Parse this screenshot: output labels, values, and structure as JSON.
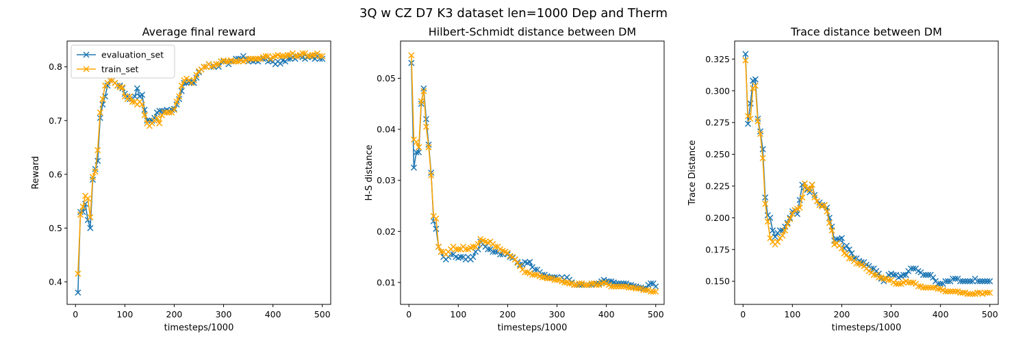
{
  "figure": {
    "suptitle": "3Q w CZ D7 K3 dataset len=1000 Dep and Therm"
  },
  "colors": {
    "evaluation_set": "#1f77b4",
    "train_set": "#ffa500"
  },
  "chart_data": [
    {
      "type": "line",
      "title": "Average final reward",
      "xlabel": "timesteps/1000",
      "ylabel": "Reward",
      "xlim": [
        -17,
        517
      ],
      "ylim": [
        0.358,
        0.848
      ],
      "xticks": [
        0,
        100,
        200,
        300,
        400,
        500
      ],
      "yticks": [
        0.4,
        0.5,
        0.6,
        0.7,
        0.8
      ],
      "ytick_labels": [
        "0.4",
        "0.5",
        "0.6",
        "0.7",
        "0.8"
      ],
      "legend": {
        "placement": "upper-left",
        "entries": [
          "evaluation_set",
          "train_set"
        ]
      },
      "x": [
        5,
        10,
        15,
        20,
        25,
        30,
        35,
        40,
        45,
        50,
        55,
        60,
        65,
        70,
        75,
        80,
        85,
        90,
        95,
        100,
        105,
        110,
        115,
        120,
        125,
        130,
        135,
        140,
        145,
        150,
        155,
        160,
        165,
        170,
        175,
        180,
        185,
        190,
        195,
        200,
        205,
        210,
        215,
        220,
        225,
        230,
        235,
        240,
        245,
        250,
        255,
        260,
        265,
        270,
        275,
        280,
        285,
        290,
        295,
        300,
        305,
        310,
        315,
        320,
        325,
        330,
        335,
        340,
        345,
        350,
        355,
        360,
        365,
        370,
        375,
        380,
        385,
        390,
        395,
        400,
        405,
        410,
        415,
        420,
        425,
        430,
        435,
        440,
        445,
        450,
        455,
        460,
        465,
        470,
        475,
        480,
        485,
        490,
        495,
        500
      ],
      "series": [
        {
          "name": "evaluation_set",
          "values": [
            0.38,
            0.53,
            0.53,
            0.545,
            0.515,
            0.5,
            0.59,
            0.61,
            0.625,
            0.705,
            0.73,
            0.745,
            0.765,
            0.775,
            0.775,
            0.77,
            0.765,
            0.765,
            0.76,
            0.75,
            0.745,
            0.74,
            0.74,
            0.745,
            0.76,
            0.745,
            0.748,
            0.72,
            0.7,
            0.7,
            0.7,
            0.705,
            0.715,
            0.718,
            0.718,
            0.718,
            0.72,
            0.718,
            0.72,
            0.722,
            0.73,
            0.74,
            0.755,
            0.77,
            0.77,
            0.772,
            0.772,
            0.77,
            0.78,
            0.79,
            0.795,
            0.8,
            0.8,
            0.805,
            0.8,
            0.8,
            0.805,
            0.8,
            0.81,
            0.81,
            0.81,
            0.805,
            0.81,
            0.81,
            0.815,
            0.815,
            0.815,
            0.82,
            0.815,
            0.81,
            0.812,
            0.81,
            0.812,
            0.81,
            0.815,
            0.815,
            0.815,
            0.81,
            0.812,
            0.81,
            0.805,
            0.81,
            0.806,
            0.812,
            0.81,
            0.815,
            0.815,
            0.818,
            0.815,
            0.82,
            0.82,
            0.818,
            0.815,
            0.818,
            0.82,
            0.818,
            0.815,
            0.82,
            0.815,
            0.815
          ]
        },
        {
          "name": "train_set",
          "values": [
            0.415,
            0.525,
            0.54,
            0.56,
            0.555,
            0.52,
            0.595,
            0.605,
            0.645,
            0.715,
            0.74,
            0.765,
            0.77,
            0.775,
            0.775,
            0.77,
            0.765,
            0.762,
            0.762,
            0.745,
            0.74,
            0.745,
            0.735,
            0.735,
            0.73,
            0.735,
            0.73,
            0.71,
            0.695,
            0.69,
            0.695,
            0.7,
            0.705,
            0.695,
            0.71,
            0.715,
            0.715,
            0.715,
            0.715,
            0.72,
            0.735,
            0.745,
            0.765,
            0.775,
            0.778,
            0.775,
            0.77,
            0.775,
            0.785,
            0.792,
            0.795,
            0.8,
            0.8,
            0.805,
            0.8,
            0.802,
            0.805,
            0.805,
            0.81,
            0.812,
            0.81,
            0.81,
            0.812,
            0.81,
            0.81,
            0.81,
            0.812,
            0.81,
            0.812,
            0.815,
            0.815,
            0.815,
            0.815,
            0.815,
            0.815,
            0.818,
            0.82,
            0.82,
            0.815,
            0.818,
            0.82,
            0.822,
            0.82,
            0.82,
            0.82,
            0.822,
            0.822,
            0.825,
            0.82,
            0.82,
            0.822,
            0.825,
            0.825,
            0.82,
            0.82,
            0.822,
            0.822,
            0.825,
            0.82,
            0.82
          ]
        }
      ]
    },
    {
      "type": "line",
      "title": "Hilbert-Schmidt distance between DM",
      "xlabel": "timesteps/1000",
      "ylabel": "H-S distance",
      "xlim": [
        -17,
        517
      ],
      "ylim": [
        0.0057,
        0.0573
      ],
      "xticks": [
        0,
        100,
        200,
        300,
        400,
        500
      ],
      "yticks": [
        0.01,
        0.02,
        0.03,
        0.04,
        0.05
      ],
      "ytick_labels": [
        "0.01",
        "0.02",
        "0.03",
        "0.04",
        "0.05"
      ],
      "x": [
        5,
        10,
        15,
        20,
        25,
        30,
        35,
        40,
        45,
        50,
        55,
        60,
        65,
        70,
        75,
        80,
        85,
        90,
        95,
        100,
        105,
        110,
        115,
        120,
        125,
        130,
        135,
        140,
        145,
        150,
        155,
        160,
        165,
        170,
        175,
        180,
        185,
        190,
        195,
        200,
        205,
        210,
        215,
        220,
        225,
        230,
        235,
        240,
        245,
        250,
        255,
        260,
        265,
        270,
        275,
        280,
        285,
        290,
        295,
        300,
        305,
        310,
        315,
        320,
        325,
        330,
        335,
        340,
        345,
        350,
        355,
        360,
        365,
        370,
        375,
        380,
        385,
        390,
        395,
        400,
        405,
        410,
        415,
        420,
        425,
        430,
        435,
        440,
        445,
        450,
        455,
        460,
        465,
        470,
        475,
        480,
        485,
        490,
        495,
        500
      ],
      "series": [
        {
          "name": "evaluation_set",
          "values": [
            0.053,
            0.0325,
            0.0355,
            0.0355,
            0.045,
            0.048,
            0.042,
            0.037,
            0.0315,
            0.022,
            0.0205,
            0.017,
            0.016,
            0.015,
            0.0145,
            0.015,
            0.0155,
            0.0155,
            0.015,
            0.0148,
            0.015,
            0.015,
            0.0145,
            0.015,
            0.0145,
            0.015,
            0.016,
            0.0165,
            0.018,
            0.0175,
            0.017,
            0.0165,
            0.0165,
            0.016,
            0.016,
            0.016,
            0.0155,
            0.0155,
            0.016,
            0.0155,
            0.015,
            0.0148,
            0.0145,
            0.014,
            0.0135,
            0.0135,
            0.014,
            0.0138,
            0.014,
            0.013,
            0.0125,
            0.0125,
            0.012,
            0.0115,
            0.0115,
            0.0112,
            0.011,
            0.011,
            0.011,
            0.011,
            0.0105,
            0.011,
            0.0105,
            0.011,
            0.0105,
            0.01,
            0.0095,
            0.0095,
            0.0095,
            0.0095,
            0.0095,
            0.0095,
            0.0095,
            0.0095,
            0.0098,
            0.0098,
            0.0098,
            0.0102,
            0.0105,
            0.0102,
            0.0102,
            0.0102,
            0.01,
            0.0098,
            0.0098,
            0.0098,
            0.0098,
            0.0098,
            0.0095,
            0.0095,
            0.0093,
            0.0092,
            0.009,
            0.009,
            0.0088,
            0.0088,
            0.0095,
            0.0098,
            0.0098,
            0.0092
          ]
        },
        {
          "name": "train_set",
          "values": [
            0.0545,
            0.038,
            0.0375,
            0.0365,
            0.0455,
            0.0475,
            0.0405,
            0.0365,
            0.031,
            0.023,
            0.0225,
            0.017,
            0.016,
            0.016,
            0.0155,
            0.016,
            0.0165,
            0.017,
            0.0165,
            0.0165,
            0.0165,
            0.017,
            0.0165,
            0.0165,
            0.0168,
            0.017,
            0.017,
            0.0175,
            0.0185,
            0.0182,
            0.018,
            0.0178,
            0.018,
            0.0175,
            0.017,
            0.017,
            0.0165,
            0.0162,
            0.016,
            0.0158,
            0.0152,
            0.015,
            0.0145,
            0.0138,
            0.0132,
            0.0125,
            0.012,
            0.012,
            0.0118,
            0.0115,
            0.0115,
            0.0115,
            0.0112,
            0.011,
            0.011,
            0.0108,
            0.0108,
            0.0108,
            0.0105,
            0.0105,
            0.0105,
            0.0102,
            0.01,
            0.01,
            0.0098,
            0.0098,
            0.0095,
            0.0095,
            0.0098,
            0.0098,
            0.0095,
            0.0095,
            0.0095,
            0.0098,
            0.0098,
            0.0095,
            0.0095,
            0.0098,
            0.01,
            0.0098,
            0.0095,
            0.0092,
            0.0092,
            0.0092,
            0.0092,
            0.0092,
            0.0092,
            0.0092,
            0.009,
            0.009,
            0.009,
            0.0088,
            0.0088,
            0.0088,
            0.0085,
            0.0085,
            0.0085,
            0.0082,
            0.0082,
            0.0082
          ]
        }
      ]
    },
    {
      "type": "line",
      "title": "Trace distance between DM",
      "xlabel": "timesteps/1000",
      "ylabel": "Trace Distance",
      "xlim": [
        -17,
        517
      ],
      "ylim": [
        0.1318,
        0.3392
      ],
      "xticks": [
        0,
        100,
        200,
        300,
        400,
        500
      ],
      "yticks": [
        0.15,
        0.175,
        0.2,
        0.225,
        0.25,
        0.275,
        0.3,
        0.325
      ],
      "ytick_labels": [
        "0.150",
        "0.175",
        "0.200",
        "0.225",
        "0.250",
        "0.275",
        "0.300",
        "0.325"
      ],
      "x": [
        5,
        10,
        15,
        20,
        25,
        30,
        35,
        40,
        45,
        50,
        55,
        60,
        65,
        70,
        75,
        80,
        85,
        90,
        95,
        100,
        105,
        110,
        115,
        120,
        125,
        130,
        135,
        140,
        145,
        150,
        155,
        160,
        165,
        170,
        175,
        180,
        185,
        190,
        195,
        200,
        205,
        210,
        215,
        220,
        225,
        230,
        235,
        240,
        245,
        250,
        255,
        260,
        265,
        270,
        275,
        280,
        285,
        290,
        295,
        300,
        305,
        310,
        315,
        320,
        325,
        330,
        335,
        340,
        345,
        350,
        355,
        360,
        365,
        370,
        375,
        380,
        385,
        390,
        395,
        400,
        405,
        410,
        415,
        420,
        425,
        430,
        435,
        440,
        445,
        450,
        455,
        460,
        465,
        470,
        475,
        480,
        485,
        490,
        495,
        500
      ],
      "series": [
        {
          "name": "evaluation_set",
          "values": [
            0.329,
            0.274,
            0.29,
            0.308,
            0.309,
            0.278,
            0.268,
            0.254,
            0.216,
            0.202,
            0.2,
            0.19,
            0.185,
            0.188,
            0.19,
            0.19,
            0.193,
            0.196,
            0.2,
            0.205,
            0.206,
            0.203,
            0.214,
            0.226,
            0.224,
            0.222,
            0.22,
            0.226,
            0.218,
            0.213,
            0.212,
            0.21,
            0.21,
            0.208,
            0.2,
            0.193,
            0.182,
            0.183,
            0.183,
            0.184,
            0.176,
            0.178,
            0.175,
            0.172,
            0.168,
            0.168,
            0.166,
            0.165,
            0.165,
            0.163,
            0.162,
            0.16,
            0.16,
            0.158,
            0.156,
            0.152,
            0.15,
            0.152,
            0.155,
            0.156,
            0.155,
            0.155,
            0.153,
            0.154,
            0.155,
            0.155,
            0.158,
            0.16,
            0.16,
            0.16,
            0.158,
            0.157,
            0.155,
            0.155,
            0.155,
            0.155,
            0.153,
            0.15,
            0.148,
            0.148,
            0.148,
            0.15,
            0.15,
            0.15,
            0.152,
            0.152,
            0.152,
            0.15,
            0.15,
            0.15,
            0.15,
            0.15,
            0.15,
            0.152,
            0.15,
            0.15,
            0.15,
            0.15,
            0.15,
            0.15
          ]
        },
        {
          "name": "train_set",
          "values": [
            0.324,
            0.28,
            0.278,
            0.302,
            0.304,
            0.276,
            0.266,
            0.247,
            0.211,
            0.197,
            0.184,
            0.181,
            0.179,
            0.181,
            0.184,
            0.186,
            0.19,
            0.195,
            0.199,
            0.203,
            0.206,
            0.207,
            0.208,
            0.216,
            0.227,
            0.223,
            0.222,
            0.226,
            0.216,
            0.213,
            0.21,
            0.209,
            0.21,
            0.205,
            0.196,
            0.19,
            0.179,
            0.18,
            0.178,
            0.176,
            0.172,
            0.171,
            0.168,
            0.168,
            0.166,
            0.164,
            0.164,
            0.163,
            0.162,
            0.16,
            0.158,
            0.157,
            0.155,
            0.155,
            0.153,
            0.153,
            0.152,
            0.152,
            0.151,
            0.151,
            0.149,
            0.148,
            0.148,
            0.148,
            0.149,
            0.15,
            0.149,
            0.149,
            0.149,
            0.148,
            0.146,
            0.146,
            0.145,
            0.145,
            0.145,
            0.145,
            0.145,
            0.145,
            0.144,
            0.144,
            0.143,
            0.142,
            0.142,
            0.142,
            0.142,
            0.142,
            0.142,
            0.141,
            0.141,
            0.141,
            0.14,
            0.14,
            0.14,
            0.14,
            0.141,
            0.141,
            0.14,
            0.141,
            0.141,
            0.141
          ]
        }
      ]
    }
  ]
}
